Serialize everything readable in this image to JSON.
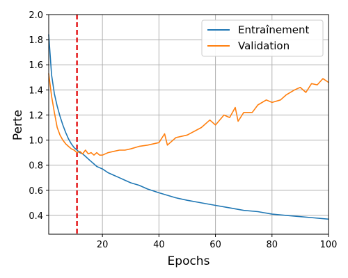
{
  "chart_data": {
    "type": "line",
    "title": "",
    "xlabel": "Epochs",
    "ylabel": "Perte",
    "xlim": [
      1,
      100
    ],
    "ylim": [
      0.25,
      2.0
    ],
    "x_ticks": [
      20,
      40,
      60,
      80,
      100
    ],
    "y_ticks": [
      0.4,
      0.6,
      0.8,
      1.0,
      1.2,
      1.4,
      1.6,
      1.8,
      2.0
    ],
    "grid": true,
    "legend_position": "top-right",
    "vline": {
      "x": 11,
      "color": "#e41a1c",
      "style": "dashed"
    },
    "series": [
      {
        "name": "Entraînement",
        "color": "#1f77b4",
        "points": [
          [
            1,
            1.84
          ],
          [
            2,
            1.52
          ],
          [
            3,
            1.37
          ],
          [
            4,
            1.27
          ],
          [
            5,
            1.19
          ],
          [
            6,
            1.12
          ],
          [
            7,
            1.06
          ],
          [
            8,
            1.01
          ],
          [
            9,
            0.97
          ],
          [
            10,
            0.94
          ],
          [
            11,
            0.92
          ],
          [
            12,
            0.9
          ],
          [
            13,
            0.89
          ],
          [
            14,
            0.87
          ],
          [
            15,
            0.85
          ],
          [
            16,
            0.83
          ],
          [
            17,
            0.81
          ],
          [
            18,
            0.79
          ],
          [
            19,
            0.78
          ],
          [
            20,
            0.77
          ],
          [
            22,
            0.74
          ],
          [
            24,
            0.72
          ],
          [
            26,
            0.7
          ],
          [
            28,
            0.68
          ],
          [
            30,
            0.66
          ],
          [
            33,
            0.64
          ],
          [
            36,
            0.61
          ],
          [
            40,
            0.58
          ],
          [
            43,
            0.56
          ],
          [
            46,
            0.54
          ],
          [
            50,
            0.52
          ],
          [
            55,
            0.5
          ],
          [
            60,
            0.48
          ],
          [
            65,
            0.46
          ],
          [
            70,
            0.44
          ],
          [
            75,
            0.43
          ],
          [
            80,
            0.41
          ],
          [
            85,
            0.4
          ],
          [
            90,
            0.39
          ],
          [
            95,
            0.38
          ],
          [
            100,
            0.37
          ]
        ]
      },
      {
        "name": "Validation",
        "color": "#ff7f0e",
        "points": [
          [
            1,
            1.53
          ],
          [
            2,
            1.35
          ],
          [
            3,
            1.22
          ],
          [
            4,
            1.1
          ],
          [
            5,
            1.04
          ],
          [
            6,
            1.0
          ],
          [
            7,
            0.97
          ],
          [
            8,
            0.95
          ],
          [
            9,
            0.93
          ],
          [
            10,
            0.92
          ],
          [
            11,
            0.9
          ],
          [
            12,
            0.91
          ],
          [
            13,
            0.89
          ],
          [
            14,
            0.92
          ],
          [
            15,
            0.89
          ],
          [
            16,
            0.9
          ],
          [
            17,
            0.88
          ],
          [
            18,
            0.9
          ],
          [
            19,
            0.88
          ],
          [
            20,
            0.88
          ],
          [
            22,
            0.9
          ],
          [
            24,
            0.91
          ],
          [
            26,
            0.92
          ],
          [
            28,
            0.92
          ],
          [
            30,
            0.93
          ],
          [
            33,
            0.95
          ],
          [
            36,
            0.96
          ],
          [
            40,
            0.98
          ],
          [
            42,
            1.05
          ],
          [
            43,
            0.96
          ],
          [
            46,
            1.02
          ],
          [
            50,
            1.04
          ],
          [
            55,
            1.1
          ],
          [
            58,
            1.16
          ],
          [
            60,
            1.12
          ],
          [
            63,
            1.2
          ],
          [
            65,
            1.18
          ],
          [
            67,
            1.26
          ],
          [
            68,
            1.15
          ],
          [
            70,
            1.22
          ],
          [
            73,
            1.22
          ],
          [
            75,
            1.28
          ],
          [
            78,
            1.32
          ],
          [
            80,
            1.3
          ],
          [
            83,
            1.32
          ],
          [
            85,
            1.36
          ],
          [
            88,
            1.4
          ],
          [
            90,
            1.42
          ],
          [
            92,
            1.38
          ],
          [
            94,
            1.45
          ],
          [
            96,
            1.44
          ],
          [
            98,
            1.49
          ],
          [
            100,
            1.46
          ]
        ]
      }
    ]
  }
}
